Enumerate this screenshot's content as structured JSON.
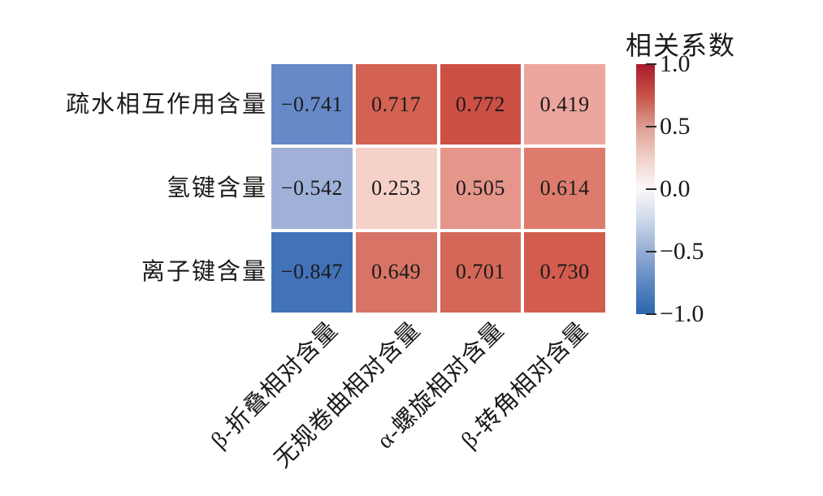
{
  "chart_data": {
    "type": "heatmap",
    "colormap": "RdBu",
    "vmin": -1.0,
    "vmax": 1.0,
    "legend_position": "right",
    "colorbar_title": "相关系数",
    "rows": [
      "疏水相互作用含量",
      "氢键含量",
      "离子键含量"
    ],
    "columns": [
      "β-折叠相对含量",
      "无规卷曲相对含量",
      "α-螺旋相对含量",
      "β-转角相对含量"
    ],
    "values": [
      [
        -0.741,
        0.717,
        0.772,
        0.419
      ],
      [
        -0.542,
        0.253,
        0.505,
        0.614
      ],
      [
        -0.847,
        0.649,
        0.701,
        0.73
      ]
    ],
    "cell_labels": [
      [
        "−0.741",
        "0.717",
        "0.772",
        "0.419"
      ],
      [
        "−0.542",
        "0.253",
        "0.505",
        "0.614"
      ],
      [
        "−0.847",
        "0.649",
        "0.701",
        "0.730"
      ]
    ],
    "cell_colors": [
      [
        "#6789c7",
        "#d46253",
        "#cd5045",
        "#eca69d"
      ],
      [
        "#a0b1d9",
        "#f5d1c8",
        "#e5958a",
        "#dd7c6d"
      ],
      [
        "#4273b9",
        "#d87466",
        "#d56758",
        "#d25c4e"
      ]
    ],
    "colorbar_ticks": [
      "1.0",
      "0.5",
      "0.0",
      "−0.5",
      "−1.0"
    ],
    "colorbar_gradient_stops": [
      {
        "color": "#a81c2e",
        "pos": "0%"
      },
      {
        "color": "#c65247",
        "pos": "12.5%"
      },
      {
        "color": "#dd9d92",
        "pos": "25%"
      },
      {
        "color": "#f0d0c8",
        "pos": "37.5%"
      },
      {
        "color": "#fbf9f8",
        "pos": "50%"
      },
      {
        "color": "#ccd8ea",
        "pos": "62.5%"
      },
      {
        "color": "#95add4",
        "pos": "75%"
      },
      {
        "color": "#5d87c3",
        "pos": "87.5%"
      },
      {
        "color": "#2a65ae",
        "pos": "100%"
      }
    ],
    "text_color": "#1a1a1a",
    "grid": false
  }
}
